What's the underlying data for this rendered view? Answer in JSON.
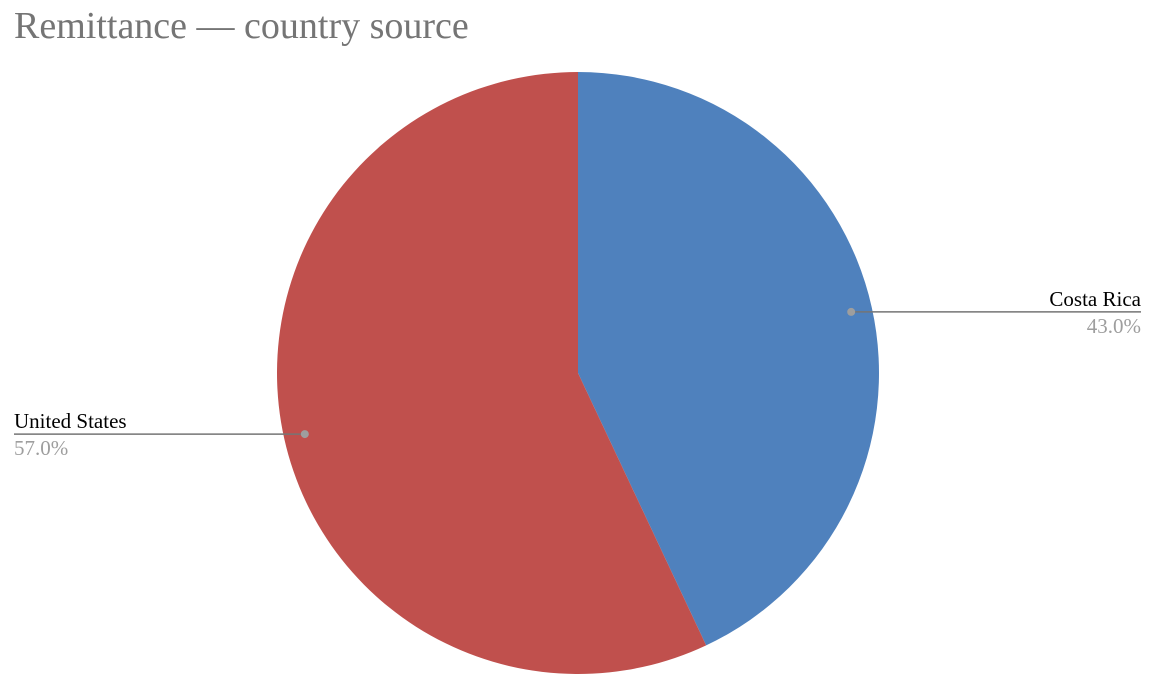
{
  "chart_data": {
    "type": "pie",
    "title": "Remittance — country source",
    "slices": [
      {
        "label": "Costa Rica",
        "value": 43.0,
        "value_label": "43.0%",
        "color": "#4f81bd"
      },
      {
        "label": "United States",
        "value": 57.0,
        "value_label": "57.0%",
        "color": "#c0504d"
      }
    ],
    "start_angle_deg": 0,
    "direction": "clockwise",
    "legend": "none"
  }
}
